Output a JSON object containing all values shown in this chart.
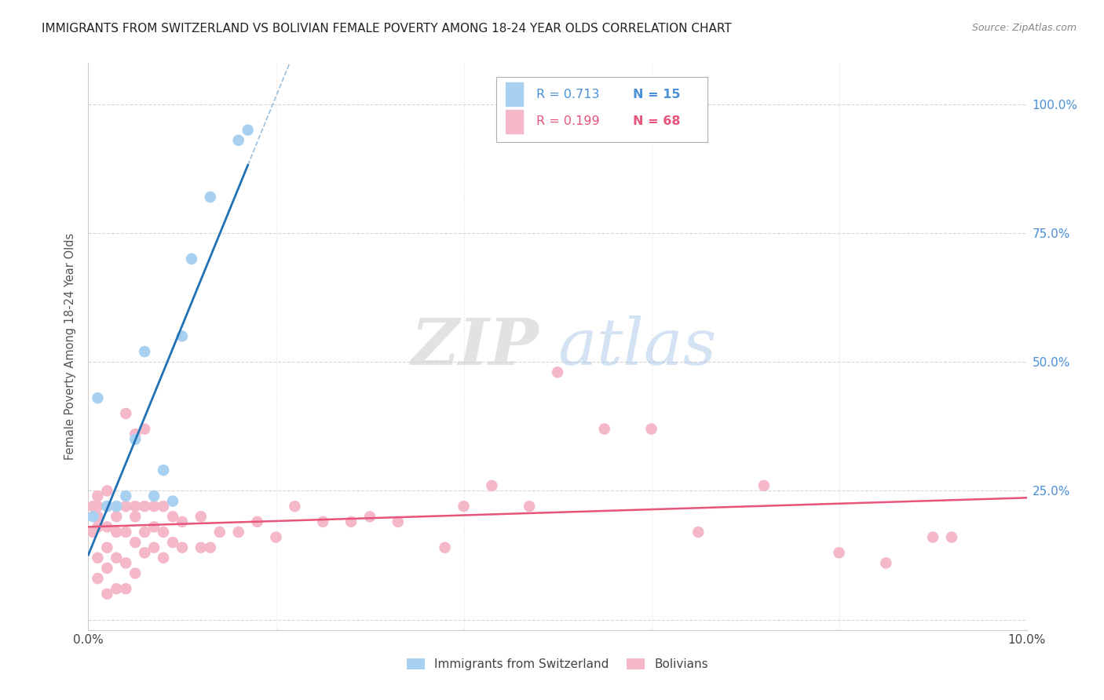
{
  "title": "IMMIGRANTS FROM SWITZERLAND VS BOLIVIAN FEMALE POVERTY AMONG 18-24 YEAR OLDS CORRELATION CHART",
  "source": "Source: ZipAtlas.com",
  "ylabel": "Female Poverty Among 18-24 Year Olds",
  "xlim": [
    0.0,
    0.1
  ],
  "ylim": [
    -0.02,
    1.08
  ],
  "legend_r1": "R = 0.713",
  "legend_n1": "N = 15",
  "legend_r2": "R = 0.199",
  "legend_n2": "N = 68",
  "label_swiss": "Immigrants from Switzerland",
  "label_bolivian": "Bolivians",
  "color_swiss": "#a8d0f0",
  "color_bolivian": "#f5b8c8",
  "color_line_swiss": "#2171b5",
  "color_line_bolivian": "#e8547a",
  "watermark_zip": "ZIP",
  "watermark_atlas": "atlas",
  "swiss_x": [
    0.0005,
    0.001,
    0.002,
    0.003,
    0.004,
    0.005,
    0.006,
    0.007,
    0.008,
    0.009,
    0.01,
    0.011,
    0.013,
    0.016,
    0.017
  ],
  "swiss_y": [
    0.2,
    0.43,
    0.22,
    0.22,
    0.24,
    0.35,
    0.52,
    0.24,
    0.29,
    0.23,
    0.55,
    0.7,
    0.82,
    0.93,
    0.95
  ],
  "bolivian_x": [
    0.0005,
    0.0005,
    0.001,
    0.001,
    0.001,
    0.001,
    0.001,
    0.001,
    0.002,
    0.002,
    0.002,
    0.002,
    0.002,
    0.002,
    0.003,
    0.003,
    0.003,
    0.003,
    0.003,
    0.004,
    0.004,
    0.004,
    0.004,
    0.004,
    0.005,
    0.005,
    0.005,
    0.005,
    0.005,
    0.006,
    0.006,
    0.006,
    0.006,
    0.007,
    0.007,
    0.007,
    0.008,
    0.008,
    0.008,
    0.009,
    0.009,
    0.01,
    0.01,
    0.012,
    0.012,
    0.013,
    0.014,
    0.016,
    0.018,
    0.02,
    0.022,
    0.025,
    0.028,
    0.03,
    0.033,
    0.038,
    0.04,
    0.043,
    0.047,
    0.05,
    0.055,
    0.06,
    0.065,
    0.072,
    0.08,
    0.085,
    0.09,
    0.092
  ],
  "bolivian_y": [
    0.22,
    0.17,
    0.08,
    0.12,
    0.18,
    0.2,
    0.22,
    0.24,
    0.05,
    0.1,
    0.14,
    0.18,
    0.22,
    0.25,
    0.06,
    0.12,
    0.17,
    0.2,
    0.22,
    0.06,
    0.11,
    0.17,
    0.22,
    0.4,
    0.09,
    0.15,
    0.2,
    0.22,
    0.36,
    0.13,
    0.17,
    0.22,
    0.37,
    0.14,
    0.18,
    0.22,
    0.12,
    0.17,
    0.22,
    0.15,
    0.2,
    0.14,
    0.19,
    0.14,
    0.2,
    0.14,
    0.17,
    0.17,
    0.19,
    0.16,
    0.22,
    0.19,
    0.19,
    0.2,
    0.19,
    0.14,
    0.22,
    0.26,
    0.22,
    0.48,
    0.37,
    0.37,
    0.17,
    0.26,
    0.13,
    0.11,
    0.16,
    0.16
  ]
}
